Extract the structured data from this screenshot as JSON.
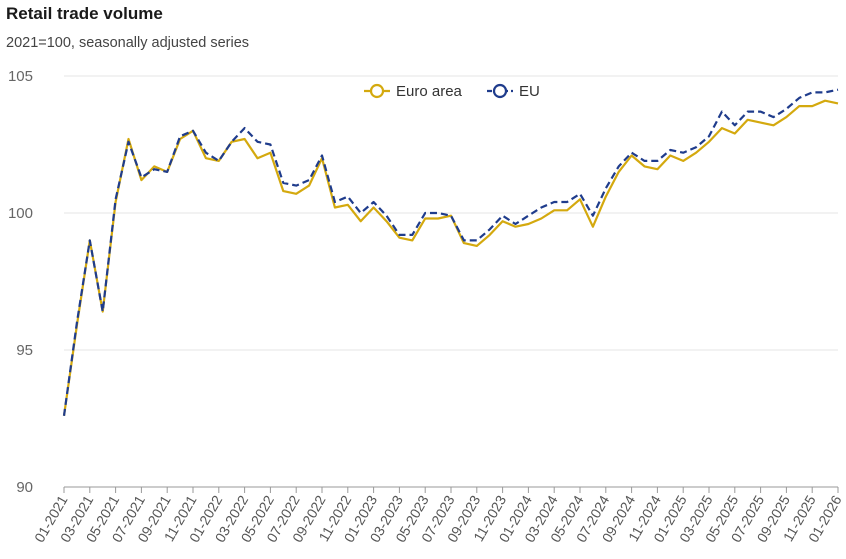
{
  "header": {
    "title": "Retail trade volume",
    "subtitle": "2021=100, seasonally adjusted series"
  },
  "chart_data": {
    "type": "line",
    "title": "Retail trade volume",
    "subtitle": "2021=100, seasonally adjusted series",
    "xlabel": "",
    "ylabel": "",
    "ylim": [
      90,
      105
    ],
    "yticks": [
      90,
      95,
      100,
      105
    ],
    "legend_position": "top-right",
    "x": [
      "01-2021",
      "02-2021",
      "03-2021",
      "04-2021",
      "05-2021",
      "06-2021",
      "07-2021",
      "08-2021",
      "09-2021",
      "10-2021",
      "11-2021",
      "12-2021",
      "01-2022",
      "02-2022",
      "03-2022",
      "04-2022",
      "05-2022",
      "06-2022",
      "07-2022",
      "08-2022",
      "09-2022",
      "10-2022",
      "11-2022",
      "12-2022",
      "01-2023",
      "02-2023",
      "03-2023",
      "04-2023",
      "05-2023",
      "06-2023",
      "07-2023",
      "08-2023",
      "09-2023",
      "10-2023",
      "11-2023",
      "12-2023",
      "01-2024",
      "02-2024",
      "03-2024",
      "04-2024",
      "05-2024",
      "06-2024",
      "07-2024",
      "08-2024",
      "09-2024",
      "10-2024",
      "11-2024",
      "12-2024",
      "01-2025",
      "02-2025",
      "03-2025",
      "04-2025",
      "05-2025",
      "06-2025",
      "07-2025",
      "08-2025",
      "09-2025",
      "10-2025",
      "11-2025",
      "12-2025",
      "01-2026"
    ],
    "xtick_labels": [
      "01-2021",
      "03-2021",
      "05-2021",
      "07-2021",
      "09-2021",
      "11-2021",
      "01-2022",
      "03-2022",
      "05-2022",
      "07-2022",
      "09-2022",
      "11-2022",
      "01-2023",
      "03-2023",
      "05-2023",
      "07-2023",
      "09-2023",
      "11-2023",
      "01-2024",
      "03-2024",
      "05-2024",
      "07-2024",
      "09-2024",
      "11-2024",
      "01-2025",
      "03-2025",
      "05-2025",
      "07-2025",
      "09-2025",
      "11-2025",
      "01-2026"
    ],
    "series": [
      {
        "name": "Euro area",
        "color": "#d4a90e",
        "style": "solid",
        "values": [
          92.6,
          95.9,
          99.0,
          96.4,
          100.4,
          102.7,
          101.2,
          101.7,
          101.5,
          102.7,
          103.0,
          102.0,
          101.9,
          102.6,
          102.7,
          102.0,
          102.2,
          100.8,
          100.7,
          101.0,
          102.0,
          100.2,
          100.3,
          99.7,
          100.2,
          99.7,
          99.1,
          99.0,
          99.8,
          99.8,
          99.9,
          98.9,
          98.8,
          99.2,
          99.7,
          99.5,
          99.6,
          99.8,
          100.1,
          100.1,
          100.5,
          99.5,
          100.6,
          101.5,
          102.1,
          101.7,
          101.6,
          102.1,
          101.9,
          102.2,
          102.6,
          103.1,
          102.9,
          103.4,
          103.3,
          103.2,
          103.5,
          103.9,
          103.9,
          104.1,
          104.0
        ]
      },
      {
        "name": "EU",
        "color": "#1f3c8c",
        "style": "dashed",
        "values": [
          92.6,
          96.0,
          99.0,
          96.4,
          100.5,
          102.6,
          101.3,
          101.6,
          101.5,
          102.8,
          103.0,
          102.2,
          101.9,
          102.6,
          103.1,
          102.6,
          102.5,
          101.1,
          101.0,
          101.2,
          102.1,
          100.4,
          100.6,
          100.0,
          100.4,
          99.9,
          99.2,
          99.2,
          100.0,
          100.0,
          99.9,
          99.0,
          99.0,
          99.4,
          99.9,
          99.6,
          99.9,
          100.2,
          100.4,
          100.4,
          100.7,
          99.9,
          100.9,
          101.7,
          102.2,
          101.9,
          101.9,
          102.3,
          102.2,
          102.4,
          102.8,
          103.7,
          103.2,
          103.7,
          103.7,
          103.5,
          103.8,
          104.2,
          104.4,
          104.4,
          104.5
        ]
      }
    ]
  }
}
